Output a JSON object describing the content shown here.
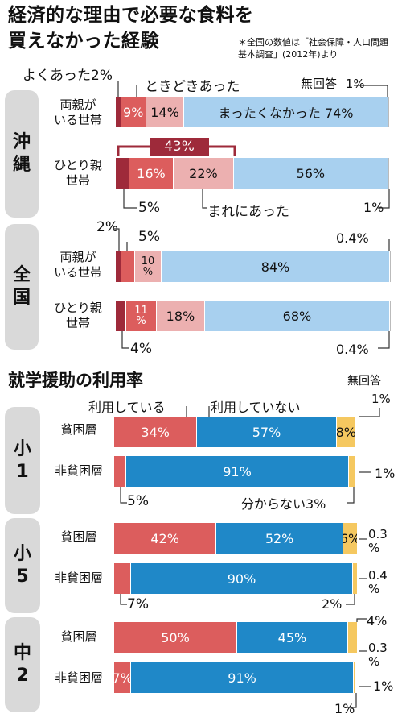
{
  "colors": {
    "dark_red": "#9e2a3a",
    "red": "#dc5d5d",
    "pink": "#ecb0b0",
    "light_blue": "#a8d0ef",
    "blue": "#1f88c8",
    "yellow": "#f5c860",
    "region_bg": "#d9d9d9"
  },
  "food": {
    "title": "経済的な理由で必要な食料を買えなかった経験",
    "note": "＊全国の数値は「社会保障・人口問題基本調査」(2012年)より",
    "legend": {
      "often": "よくあった2%",
      "sometimes": "ときどきあった",
      "noanswer": "無回答",
      "never": "まったくなかった",
      "rarely": "まれにあった",
      "bracket_total": "43%"
    },
    "okinawa": {
      "region": "沖縄",
      "rows": [
        {
          "label": "両親が\nいる世帯",
          "labels": [
            "",
            "9%",
            "14%",
            "まったくなかった 74%",
            ""
          ],
          "left_note": "",
          "right_note": "1%"
        },
        {
          "label": "ひとり親\n世帯",
          "labels": [
            "",
            "16%",
            "22%",
            "56%",
            ""
          ],
          "left_note": "5%",
          "right_note": "1%"
        }
      ]
    },
    "national": {
      "region": "全国",
      "rows": [
        {
          "label": "両親が\nいる世帯",
          "labels": [
            "",
            "",
            "10\n%",
            "84%",
            ""
          ],
          "left_note": "2%",
          "mid_note": "5%",
          "right_note": "0.4%"
        },
        {
          "label": "ひとり親\n世帯",
          "labels": [
            "",
            "11\n%",
            "18%",
            "68%",
            ""
          ],
          "left_note": "4%",
          "right_note": "0.4%"
        }
      ]
    }
  },
  "chart_data": [
    {
      "type": "bar",
      "title": "経済的な理由で必要な食料を買えなかった経験",
      "categories": [
        "沖縄 両親がいる世帯",
        "沖縄 ひとり親世帯",
        "全国 両親がいる世帯",
        "全国 ひとり親世帯"
      ],
      "series": [
        {
          "name": "よくあった",
          "values": [
            2,
            5,
            2,
            4
          ]
        },
        {
          "name": "ときどきあった",
          "values": [
            9,
            16,
            5,
            11
          ]
        },
        {
          "name": "まれにあった",
          "values": [
            14,
            22,
            10,
            18
          ]
        },
        {
          "name": "まったくなかった",
          "values": [
            74,
            56,
            84,
            68
          ]
        },
        {
          "name": "無回答",
          "values": [
            1,
            1,
            0.4,
            0.4
          ]
        }
      ]
    },
    {
      "type": "bar",
      "title": "就学援助の利用率",
      "categories": [
        "小1 貧困層",
        "小1 非貧困層",
        "小5 貧困層",
        "小5 非貧困層",
        "中2 貧困層",
        "中2 非貧困層"
      ],
      "series": [
        {
          "name": "利用している",
          "values": [
            34,
            5,
            42,
            7,
            50,
            7
          ]
        },
        {
          "name": "利用していない",
          "values": [
            57,
            91,
            52,
            90,
            45,
            91
          ]
        },
        {
          "name": "分からない",
          "values": [
            8,
            3,
            6,
            2,
            4,
            1
          ]
        },
        {
          "name": "無回答",
          "values": [
            1,
            1,
            0.3,
            0.4,
            0.3,
            1
          ]
        }
      ]
    }
  ],
  "aid": {
    "title": "就学援助の利用率",
    "legend": {
      "using": "利用している",
      "not_using": "利用していない",
      "noanswer": "無回答",
      "unknown": "分からない3%"
    },
    "groups": [
      {
        "region": "小1",
        "rows": [
          {
            "label": "貧困層",
            "labels": [
              "34%",
              "57%",
              "8%",
              ""
            ],
            "right_note": "1%"
          },
          {
            "label": "非貧困層",
            "labels": [
              "",
              "91%",
              "",
              ""
            ],
            "right_note": "1%",
            "left_note": "5%"
          }
        ]
      },
      {
        "region": "小5",
        "rows": [
          {
            "label": "貧困層",
            "labels": [
              "42%",
              "52%",
              "6%",
              ""
            ],
            "right_note": "0.3\n%"
          },
          {
            "label": "非貧困層",
            "labels": [
              "",
              "90%",
              "",
              ""
            ],
            "right_note": "0.4\n%",
            "left_note": "7%",
            "mid_note": "2%"
          }
        ]
      },
      {
        "region": "中2",
        "rows": [
          {
            "label": "貧困層",
            "labels": [
              "50%",
              "45%",
              "",
              ""
            ],
            "right_note": "0.3\n%",
            "top_note": "4%"
          },
          {
            "label": "非貧困層",
            "labels": [
              "7%",
              "91%",
              "",
              ""
            ],
            "right_note": "1%",
            "mid_note": "1%"
          }
        ]
      }
    ],
    "noanswer_top": "1%"
  }
}
